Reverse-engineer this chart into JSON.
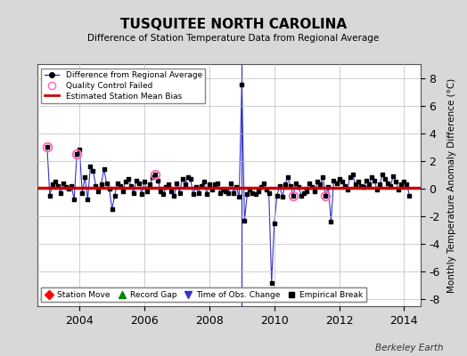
{
  "title": "TUSQUITEE NORTH CAROLINA",
  "subtitle": "Difference of Station Temperature Data from Regional Average",
  "ylabel": "Monthly Temperature Anomaly Difference (°C)",
  "ylim": [
    -8.5,
    9.0
  ],
  "yticks": [
    -8,
    -6,
    -4,
    -2,
    0,
    2,
    4,
    6,
    8
  ],
  "xlim": [
    2002.7,
    2014.5
  ],
  "xticks": [
    2004,
    2006,
    2008,
    2010,
    2012,
    2014
  ],
  "background_color": "#d8d8d8",
  "plot_bg_color": "#ffffff",
  "grid_color": "#bbbbbb",
  "bias_line_color": "#cc0000",
  "bias_value": 0.08,
  "line_color": "#3333cc",
  "marker_color": "#000000",
  "qc_color": "#ff66bb",
  "watermark": "Berkeley Earth",
  "times": [
    2003.0,
    2003.083,
    2003.167,
    2003.25,
    2003.333,
    2003.417,
    2003.5,
    2003.583,
    2003.667,
    2003.75,
    2003.833,
    2003.917,
    2004.0,
    2004.083,
    2004.167,
    2004.25,
    2004.333,
    2004.417,
    2004.5,
    2004.583,
    2004.667,
    2004.75,
    2004.833,
    2004.917,
    2005.0,
    2005.083,
    2005.167,
    2005.25,
    2005.333,
    2005.417,
    2005.5,
    2005.583,
    2005.667,
    2005.75,
    2005.833,
    2005.917,
    2006.0,
    2006.083,
    2006.167,
    2006.25,
    2006.333,
    2006.417,
    2006.5,
    2006.583,
    2006.667,
    2006.75,
    2006.833,
    2006.917,
    2007.0,
    2007.083,
    2007.167,
    2007.25,
    2007.333,
    2007.417,
    2007.5,
    2007.583,
    2007.667,
    2007.75,
    2007.833,
    2007.917,
    2008.0,
    2008.083,
    2008.167,
    2008.25,
    2008.333,
    2008.417,
    2008.5,
    2008.583,
    2008.667,
    2008.75,
    2008.833,
    2008.917,
    2009.0,
    2009.083,
    2009.167,
    2009.25,
    2009.333,
    2009.417,
    2009.5,
    2009.583,
    2009.667,
    2009.75,
    2009.833,
    2009.917,
    2010.0,
    2010.083,
    2010.167,
    2010.25,
    2010.333,
    2010.417,
    2010.5,
    2010.583,
    2010.667,
    2010.75,
    2010.833,
    2010.917,
    2011.0,
    2011.083,
    2011.167,
    2011.25,
    2011.333,
    2011.417,
    2011.5,
    2011.583,
    2011.667,
    2011.75,
    2011.833,
    2011.917,
    2012.0,
    2012.083,
    2012.167,
    2012.25,
    2012.333,
    2012.417,
    2012.5,
    2012.583,
    2012.667,
    2012.75,
    2012.833,
    2012.917,
    2013.0,
    2013.083,
    2013.167,
    2013.25,
    2013.333,
    2013.417,
    2013.5,
    2013.583,
    2013.667,
    2013.75,
    2013.833,
    2013.917,
    2014.0,
    2014.083,
    2014.167
  ],
  "values": [
    3.0,
    -0.5,
    0.3,
    0.5,
    0.2,
    -0.3,
    0.4,
    0.1,
    0.0,
    0.2,
    -0.8,
    2.5,
    2.8,
    -0.3,
    0.8,
    -0.8,
    1.6,
    1.3,
    0.2,
    -0.2,
    0.3,
    1.4,
    0.4,
    0.0,
    -1.5,
    -0.5,
    0.4,
    0.2,
    -0.2,
    0.5,
    0.7,
    0.2,
    -0.3,
    0.6,
    0.4,
    -0.4,
    0.5,
    -0.2,
    0.3,
    0.8,
    1.0,
    0.6,
    -0.2,
    -0.4,
    0.1,
    0.3,
    -0.2,
    -0.5,
    0.4,
    -0.3,
    0.7,
    0.3,
    0.8,
    0.7,
    -0.4,
    0.1,
    -0.3,
    0.2,
    0.5,
    -0.4,
    0.3,
    -0.1,
    0.3,
    0.4,
    -0.3,
    -0.1,
    -0.2,
    -0.3,
    0.4,
    -0.3,
    0.1,
    -0.6,
    7.5,
    -2.3,
    -0.4,
    -0.1,
    -0.3,
    -0.4,
    -0.2,
    0.1,
    0.4,
    -0.1,
    -0.3,
    -6.8,
    -2.5,
    -0.5,
    0.2,
    -0.6,
    0.3,
    0.8,
    0.2,
    -0.5,
    0.4,
    0.1,
    -0.5,
    -0.3,
    -0.2,
    0.4,
    0.1,
    -0.2,
    0.5,
    0.3,
    0.8,
    -0.5,
    0.1,
    -2.4,
    0.6,
    0.4,
    0.7,
    0.5,
    0.2,
    -0.1,
    0.8,
    1.0,
    0.3,
    0.5,
    0.2,
    0.1,
    0.6,
    0.3,
    0.8,
    0.6,
    -0.1,
    0.3,
    1.0,
    0.7,
    0.4,
    0.2,
    0.9,
    0.5,
    -0.1,
    0.3,
    0.5,
    0.3,
    -0.5
  ],
  "qc_failed_indices": [
    0,
    11,
    40,
    91,
    103
  ],
  "time_of_obs_change_x": 2009.0
}
